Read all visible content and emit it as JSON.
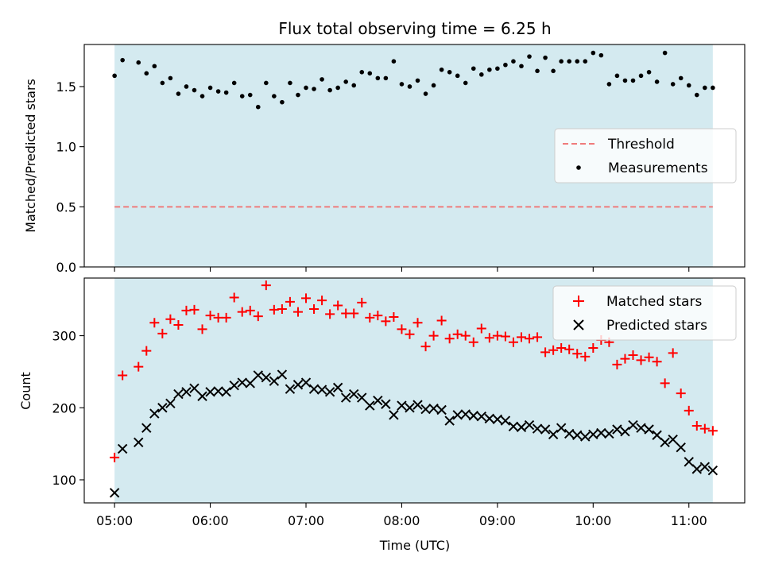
{
  "chart_data": [
    {
      "type": "scatter",
      "title": "Flux total observing time = 6.25 h",
      "ylabel": "Matched/Predicted stars",
      "xlim": [
        "04:41",
        "11:35"
      ],
      "ylim": [
        0.0,
        1.85
      ],
      "yticks": [
        {
          "label": "0.0",
          "value": 0.0
        },
        {
          "label": "0.5",
          "value": 0.5
        },
        {
          "label": "1.0",
          "value": 1.0
        },
        {
          "label": "1.5",
          "value": 1.5
        }
      ],
      "shaded_region": {
        "x_start": "05:00",
        "x_end": "11:15",
        "color": "#d4eaf0"
      },
      "legend": {
        "placement": "center-right"
      },
      "threshold": {
        "name": "Threshold",
        "value": 0.5,
        "color": "#ef7b7b",
        "style": "dashed"
      },
      "series": [
        {
          "name": "Measurements",
          "marker": "dot",
          "color": "#000000",
          "x": [
            "05:00",
            "05:05",
            "05:15",
            "05:20",
            "05:25",
            "05:30",
            "05:35",
            "05:40",
            "05:45",
            "05:50",
            "05:55",
            "06:00",
            "06:05",
            "06:10",
            "06:15",
            "06:20",
            "06:25",
            "06:30",
            "06:35",
            "06:40",
            "06:45",
            "06:50",
            "06:55",
            "07:00",
            "07:05",
            "07:10",
            "07:15",
            "07:20",
            "07:25",
            "07:30",
            "07:35",
            "07:40",
            "07:45",
            "07:50",
            "07:55",
            "08:00",
            "08:05",
            "08:10",
            "08:15",
            "08:20",
            "08:25",
            "08:30",
            "08:35",
            "08:40",
            "08:45",
            "08:50",
            "08:55",
            "09:00",
            "09:05",
            "09:10",
            "09:15",
            "09:20",
            "09:25",
            "09:30",
            "09:35",
            "09:40",
            "09:45",
            "09:50",
            "09:55",
            "10:00",
            "10:05",
            "10:10",
            "10:15",
            "10:20",
            "10:25",
            "10:30",
            "10:35",
            "10:40",
            "10:45",
            "10:50",
            "10:55",
            "11:00",
            "11:05",
            "11:10",
            "11:15"
          ],
          "y": [
            1.59,
            1.72,
            1.7,
            1.61,
            1.67,
            1.53,
            1.57,
            1.44,
            1.5,
            1.47,
            1.42,
            1.49,
            1.46,
            1.45,
            1.53,
            1.42,
            1.43,
            1.33,
            1.53,
            1.42,
            1.37,
            1.53,
            1.43,
            1.49,
            1.48,
            1.56,
            1.47,
            1.49,
            1.54,
            1.51,
            1.62,
            1.61,
            1.57,
            1.57,
            1.71,
            1.52,
            1.5,
            1.55,
            1.44,
            1.51,
            1.64,
            1.62,
            1.59,
            1.53,
            1.65,
            1.6,
            1.64,
            1.65,
            1.68,
            1.71,
            1.67,
            1.75,
            1.63,
            1.74,
            1.63,
            1.71,
            1.71,
            1.71,
            1.71,
            1.78,
            1.76,
            1.52,
            1.59,
            1.55,
            1.55,
            1.59,
            1.62,
            1.54,
            1.78,
            1.52,
            1.57,
            1.51,
            1.43,
            1.49,
            1.49
          ]
        }
      ]
    },
    {
      "type": "scatter",
      "xlabel": "Time (UTC)",
      "ylabel": "Count",
      "xlim": [
        "04:41",
        "11:35"
      ],
      "ylim": [
        68,
        380
      ],
      "xticks": [
        "05:00",
        "06:00",
        "07:00",
        "08:00",
        "09:00",
        "10:00",
        "11:00"
      ],
      "yticks": [
        {
          "label": "100",
          "value": 100
        },
        {
          "label": "200",
          "value": 200
        },
        {
          "label": "300",
          "value": 300
        }
      ],
      "shaded_region": {
        "x_start": "05:00",
        "x_end": "11:15",
        "color": "#d4eaf0"
      },
      "legend": {
        "placement": "top-right"
      },
      "series": [
        {
          "name": "Matched stars",
          "marker": "plus",
          "color": "#ff0000",
          "x": [
            "05:00",
            "05:05",
            "05:15",
            "05:20",
            "05:25",
            "05:30",
            "05:35",
            "05:40",
            "05:45",
            "05:50",
            "05:55",
            "06:00",
            "06:05",
            "06:10",
            "06:15",
            "06:20",
            "06:25",
            "06:30",
            "06:35",
            "06:40",
            "06:45",
            "06:50",
            "06:55",
            "07:00",
            "07:05",
            "07:10",
            "07:15",
            "07:20",
            "07:25",
            "07:30",
            "07:35",
            "07:40",
            "07:45",
            "07:50",
            "07:55",
            "08:00",
            "08:05",
            "08:10",
            "08:15",
            "08:20",
            "08:25",
            "08:30",
            "08:35",
            "08:40",
            "08:45",
            "08:50",
            "08:55",
            "09:00",
            "09:05",
            "09:10",
            "09:15",
            "09:20",
            "09:25",
            "09:30",
            "09:35",
            "09:40",
            "09:45",
            "09:50",
            "09:55",
            "10:00",
            "10:05",
            "10:10",
            "10:15",
            "10:20",
            "10:25",
            "10:30",
            "10:35",
            "10:40",
            "10:45",
            "10:50",
            "10:55",
            "11:00",
            "11:05",
            "11:10",
            "11:15"
          ],
          "y": [
            131,
            245,
            257,
            279,
            318,
            303,
            323,
            315,
            335,
            336,
            309,
            328,
            325,
            325,
            353,
            333,
            335,
            327,
            370,
            336,
            337,
            347,
            333,
            352,
            337,
            349,
            330,
            342,
            331,
            331,
            346,
            325,
            328,
            320,
            326,
            309,
            302,
            318,
            285,
            300,
            321,
            296,
            302,
            300,
            291,
            310,
            297,
            300,
            299,
            291,
            298,
            296,
            298,
            277,
            280,
            283,
            281,
            275,
            271,
            283,
            294,
            291,
            260,
            268,
            273,
            266,
            270,
            264,
            234,
            276,
            220,
            196,
            175,
            171,
            168
          ]
        },
        {
          "name": "Predicted stars",
          "marker": "x",
          "color": "#000000",
          "x": [
            "05:00",
            "05:05",
            "05:15",
            "05:20",
            "05:25",
            "05:30",
            "05:35",
            "05:40",
            "05:45",
            "05:50",
            "05:55",
            "06:00",
            "06:05",
            "06:10",
            "06:15",
            "06:20",
            "06:25",
            "06:30",
            "06:35",
            "06:40",
            "06:45",
            "06:50",
            "06:55",
            "07:00",
            "07:05",
            "07:10",
            "07:15",
            "07:20",
            "07:25",
            "07:30",
            "07:35",
            "07:40",
            "07:45",
            "07:50",
            "07:55",
            "08:00",
            "08:05",
            "08:10",
            "08:15",
            "08:20",
            "08:25",
            "08:30",
            "08:35",
            "08:40",
            "08:45",
            "08:50",
            "08:55",
            "09:00",
            "09:05",
            "09:10",
            "09:15",
            "09:20",
            "09:25",
            "09:30",
            "09:35",
            "09:40",
            "09:45",
            "09:50",
            "09:55",
            "10:00",
            "10:05",
            "10:10",
            "10:15",
            "10:20",
            "10:25",
            "10:30",
            "10:35",
            "10:40",
            "10:45",
            "10:50",
            "10:55",
            "11:00",
            "11:05",
            "11:10",
            "11:15"
          ],
          "y": [
            82,
            143,
            152,
            172,
            192,
            200,
            206,
            219,
            222,
            227,
            216,
            222,
            223,
            222,
            231,
            235,
            234,
            245,
            242,
            237,
            246,
            226,
            232,
            235,
            226,
            225,
            222,
            228,
            214,
            219,
            214,
            203,
            210,
            205,
            190,
            203,
            200,
            204,
            198,
            199,
            197,
            182,
            190,
            191,
            189,
            188,
            185,
            184,
            182,
            174,
            173,
            176,
            171,
            170,
            163,
            172,
            164,
            162,
            160,
            163,
            165,
            164,
            170,
            167,
            176,
            172,
            170,
            162,
            152,
            156,
            145,
            125,
            115,
            118,
            113
          ]
        }
      ]
    }
  ]
}
